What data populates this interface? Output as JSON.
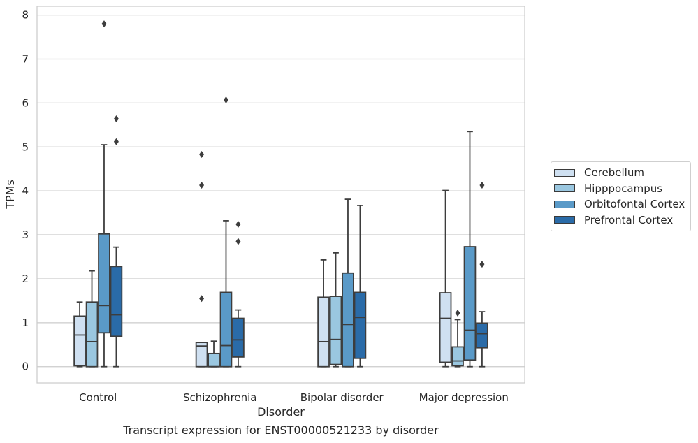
{
  "chart_data": {
    "type": "boxplot",
    "caption": "Transcript expression for ENST00000521233 by disorder",
    "xlabel": "Disorder",
    "ylabel": "TPMs",
    "ylim": [
      -0.37,
      8.2
    ],
    "yticks": [
      0,
      1,
      2,
      3,
      4,
      5,
      6,
      7,
      8
    ],
    "grid": true,
    "legend_position": "right",
    "categories": [
      "Control",
      "Schizophrenia",
      "Bipolar disorder",
      "Major depression"
    ],
    "series": [
      {
        "name": "Cerebellum",
        "color": "#cfe0f1",
        "boxes": [
          {
            "whislo": 0.0,
            "q1": 0.02,
            "med": 0.72,
            "q3": 1.15,
            "whishi": 1.47,
            "fliers": []
          },
          {
            "whislo": 0.0,
            "q1": 0.0,
            "med": 0.47,
            "q3": 0.55,
            "whishi": 0.55,
            "fliers": [
              4.83,
              4.13,
              1.55
            ]
          },
          {
            "whislo": 0.0,
            "q1": 0.0,
            "med": 0.57,
            "q3": 1.58,
            "whishi": 2.43,
            "fliers": []
          },
          {
            "whislo": 0.0,
            "q1": 0.1,
            "med": 1.1,
            "q3": 1.68,
            "whishi": 4.01,
            "fliers": []
          }
        ]
      },
      {
        "name": "Hipppocampus",
        "color": "#9ac7e0",
        "boxes": [
          {
            "whislo": 0.0,
            "q1": 0.0,
            "med": 0.57,
            "q3": 1.47,
            "whishi": 2.18,
            "fliers": []
          },
          {
            "whislo": 0.0,
            "q1": 0.0,
            "med": 0.0,
            "q3": 0.3,
            "whishi": 0.58,
            "fliers": []
          },
          {
            "whislo": 0.0,
            "q1": 0.05,
            "med": 0.62,
            "q3": 1.6,
            "whishi": 2.59,
            "fliers": []
          },
          {
            "whislo": 0.0,
            "q1": 0.02,
            "med": 0.13,
            "q3": 0.45,
            "whishi": 1.07,
            "fliers": [
              1.22
            ]
          }
        ]
      },
      {
        "name": "Orbitofontal Cortex",
        "color": "#5a9ac8",
        "boxes": [
          {
            "whislo": 0.0,
            "q1": 0.77,
            "med": 1.39,
            "q3": 3.02,
            "whishi": 5.05,
            "fliers": [
              7.8
            ]
          },
          {
            "whislo": 0.0,
            "q1": 0.0,
            "med": 0.48,
            "q3": 1.69,
            "whishi": 3.32,
            "fliers": [
              6.07
            ]
          },
          {
            "whislo": 0.0,
            "q1": 0.0,
            "med": 0.96,
            "q3": 2.13,
            "whishi": 3.81,
            "fliers": []
          },
          {
            "whislo": 0.0,
            "q1": 0.15,
            "med": 0.83,
            "q3": 2.73,
            "whishi": 5.35,
            "fliers": []
          }
        ]
      },
      {
        "name": "Prefrontal Cortex",
        "color": "#2a6ba8",
        "boxes": [
          {
            "whislo": 0.0,
            "q1": 0.69,
            "med": 1.18,
            "q3": 2.28,
            "whishi": 2.72,
            "fliers": [
              5.64,
              5.12
            ]
          },
          {
            "whislo": 0.0,
            "q1": 0.22,
            "med": 0.61,
            "q3": 1.1,
            "whishi": 1.29,
            "fliers": [
              3.24,
              2.85
            ]
          },
          {
            "whislo": 0.0,
            "q1": 0.19,
            "med": 1.12,
            "q3": 1.69,
            "whishi": 3.67,
            "fliers": []
          },
          {
            "whislo": 0.0,
            "q1": 0.43,
            "med": 0.75,
            "q3": 0.99,
            "whishi": 1.25,
            "fliers": [
              4.13,
              2.33
            ]
          }
        ]
      }
    ]
  }
}
